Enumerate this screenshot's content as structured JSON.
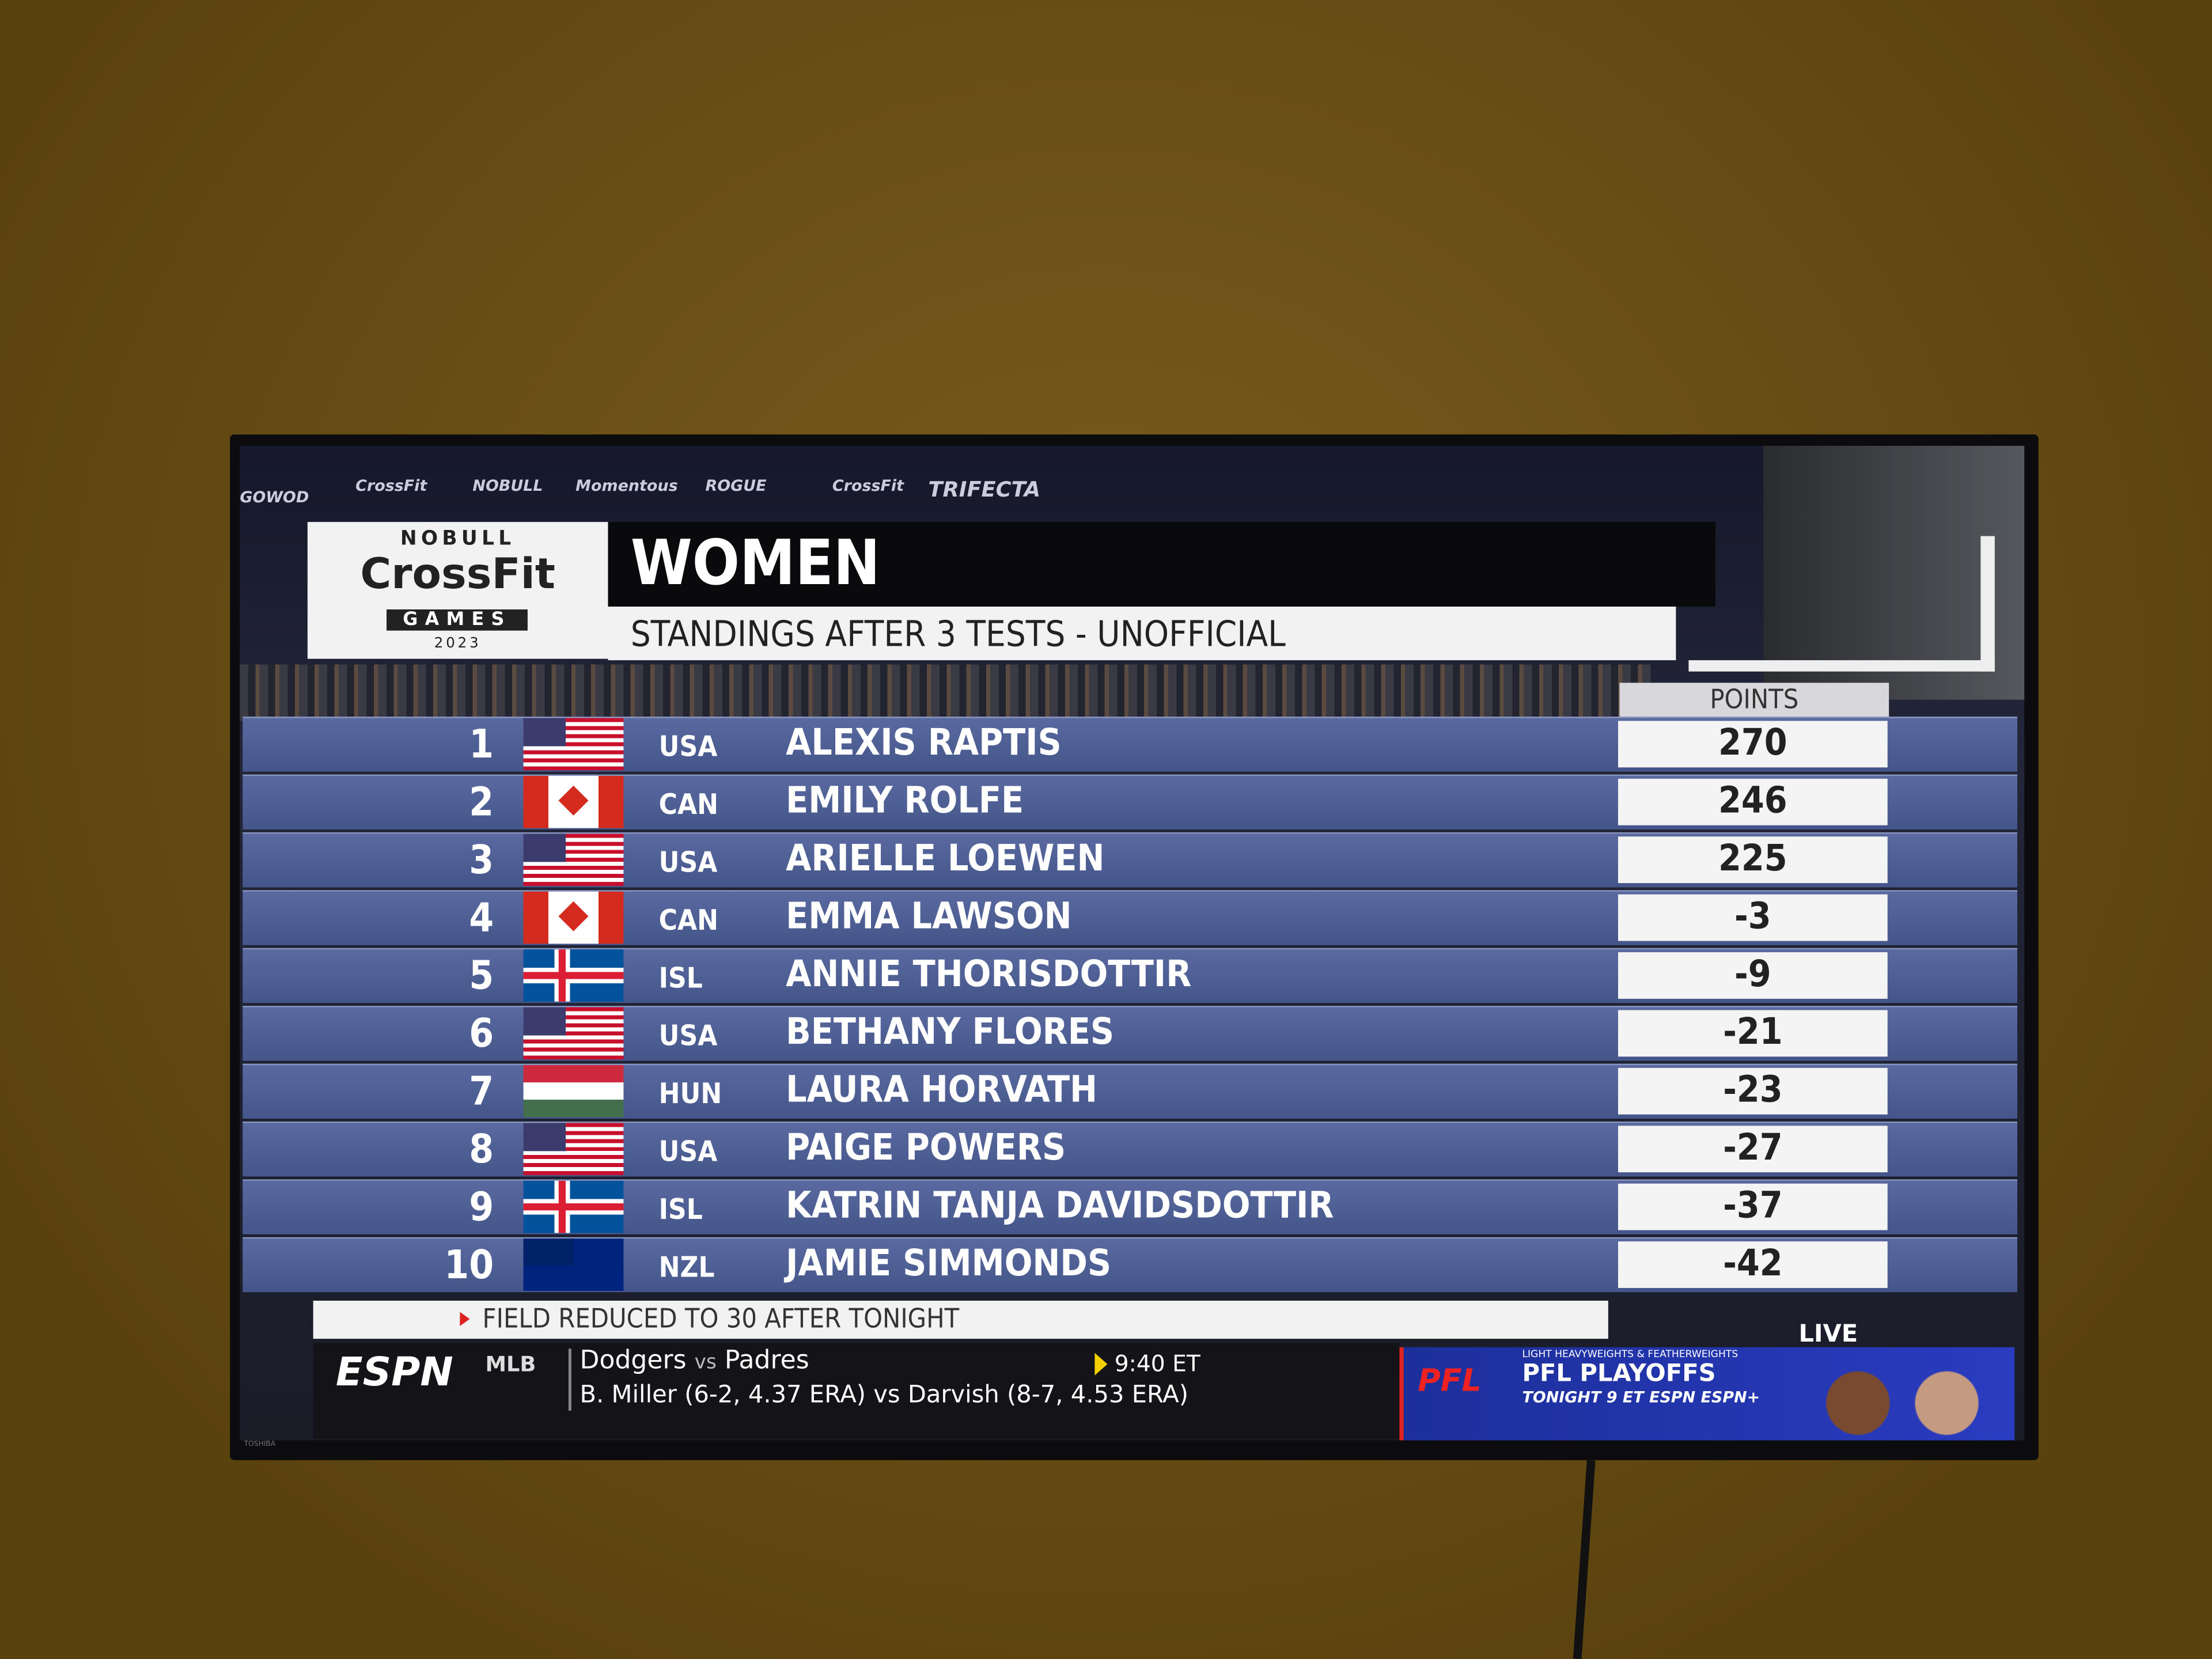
{
  "sponsors": [
    "GOWOD",
    "CrossFit",
    "NOBULL",
    "Momentous",
    "ROGUE",
    "CrossFit",
    "TRIFECTA"
  ],
  "logo": {
    "brand": "NOBULL",
    "name": "CrossFit",
    "event": "GAMES",
    "year": "2023"
  },
  "header": {
    "title": "WOMEN",
    "subtitle": "STANDINGS AFTER 3 TESTS - UNOFFICIAL"
  },
  "table": {
    "points_header": "POINTS",
    "rows": [
      [
        "1",
        "USA",
        "ALEXIS RAPTIS",
        270
      ],
      [
        "2",
        "CAN",
        "EMILY ROLFE",
        246
      ],
      [
        "3",
        "USA",
        "ARIELLE LOEWEN",
        225
      ],
      [
        "4",
        "CAN",
        "EMMA LAWSON",
        -3
      ],
      [
        "5",
        "ISL",
        "ANNIE THORISDOTTIR",
        -9
      ],
      [
        "6",
        "USA",
        "BETHANY FLORES",
        -21
      ],
      [
        "7",
        "HUN",
        "LAURA HORVATH",
        -23
      ],
      [
        "8",
        "USA",
        "PAIGE POWERS",
        -27
      ],
      [
        "9",
        "ISL",
        "KATRIN TANJA DAVIDSDOTTIR",
        -37
      ],
      [
        "10",
        "NZL",
        "JAMIE SIMMONDS",
        -42
      ]
    ]
  },
  "note": "FIELD REDUCED TO 30 AFTER TONIGHT",
  "ticker": {
    "network": "ESPN",
    "league": "MLB",
    "team1": "Dodgers",
    "vs": "vs",
    "team2": "Padres",
    "time": "9:40 ET",
    "pitchers": "B. Miller (6-2, 4.37 ERA) vs Darvish (8-7, 4.53 ERA)"
  },
  "promo": {
    "live": "LIVE",
    "logo": "PFL",
    "kicker": "LIGHT HEAVYWEIGHTS & FEATHERWEIGHTS",
    "title": "PFL PLAYOFFS",
    "time": "TONIGHT 9 ET",
    "channels": "ESPN ESPN+"
  },
  "tv_brand": "TOSHIBA"
}
